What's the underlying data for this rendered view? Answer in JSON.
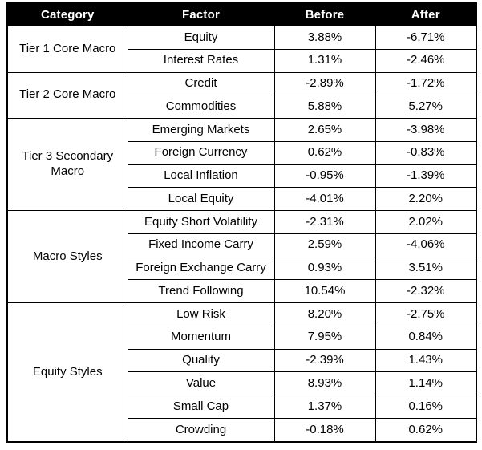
{
  "chart_data": {
    "type": "table",
    "columns": [
      "Category",
      "Factor",
      "Before",
      "After"
    ],
    "groups": [
      {
        "category": "Tier 1 Core Macro",
        "rows": [
          {
            "factor": "Equity",
            "before": "3.88%",
            "after": "-6.71%"
          },
          {
            "factor": "Interest Rates",
            "before": "1.31%",
            "after": "-2.46%"
          }
        ]
      },
      {
        "category": "Tier 2 Core Macro",
        "rows": [
          {
            "factor": "Credit",
            "before": "-2.89%",
            "after": "-1.72%"
          },
          {
            "factor": "Commodities",
            "before": "5.88%",
            "after": "5.27%"
          }
        ]
      },
      {
        "category": "Tier 3 Secondary Macro",
        "rows": [
          {
            "factor": "Emerging Markets",
            "before": "2.65%",
            "after": "-3.98%"
          },
          {
            "factor": "Foreign Currency",
            "before": "0.62%",
            "after": "-0.83%"
          },
          {
            "factor": "Local Inflation",
            "before": "-0.95%",
            "after": "-1.39%"
          },
          {
            "factor": "Local Equity",
            "before": "-4.01%",
            "after": "2.20%"
          }
        ]
      },
      {
        "category": "Macro Styles",
        "rows": [
          {
            "factor": "Equity Short Volatility",
            "before": "-2.31%",
            "after": "2.02%"
          },
          {
            "factor": "Fixed Income Carry",
            "before": "2.59%",
            "after": "-4.06%"
          },
          {
            "factor": "Foreign Exchange Carry",
            "before": "0.93%",
            "after": "3.51%"
          },
          {
            "factor": "Trend Following",
            "before": "10.54%",
            "after": "-2.32%"
          }
        ]
      },
      {
        "category": "Equity Styles",
        "rows": [
          {
            "factor": "Low Risk",
            "before": "8.20%",
            "after": "-2.75%"
          },
          {
            "factor": "Momentum",
            "before": "7.95%",
            "after": "0.84%"
          },
          {
            "factor": "Quality",
            "before": "-2.39%",
            "after": "1.43%"
          },
          {
            "factor": "Value",
            "before": "8.93%",
            "after": "1.14%"
          },
          {
            "factor": "Small Cap",
            "before": "1.37%",
            "after": "0.16%"
          },
          {
            "factor": "Crowding",
            "before": "-0.18%",
            "after": "0.62%"
          }
        ]
      }
    ]
  },
  "colors": {
    "header_bg": "#000000",
    "header_text": "#ffffff",
    "border": "#000000",
    "body_text": "#000000",
    "background": "#ffffff"
  }
}
